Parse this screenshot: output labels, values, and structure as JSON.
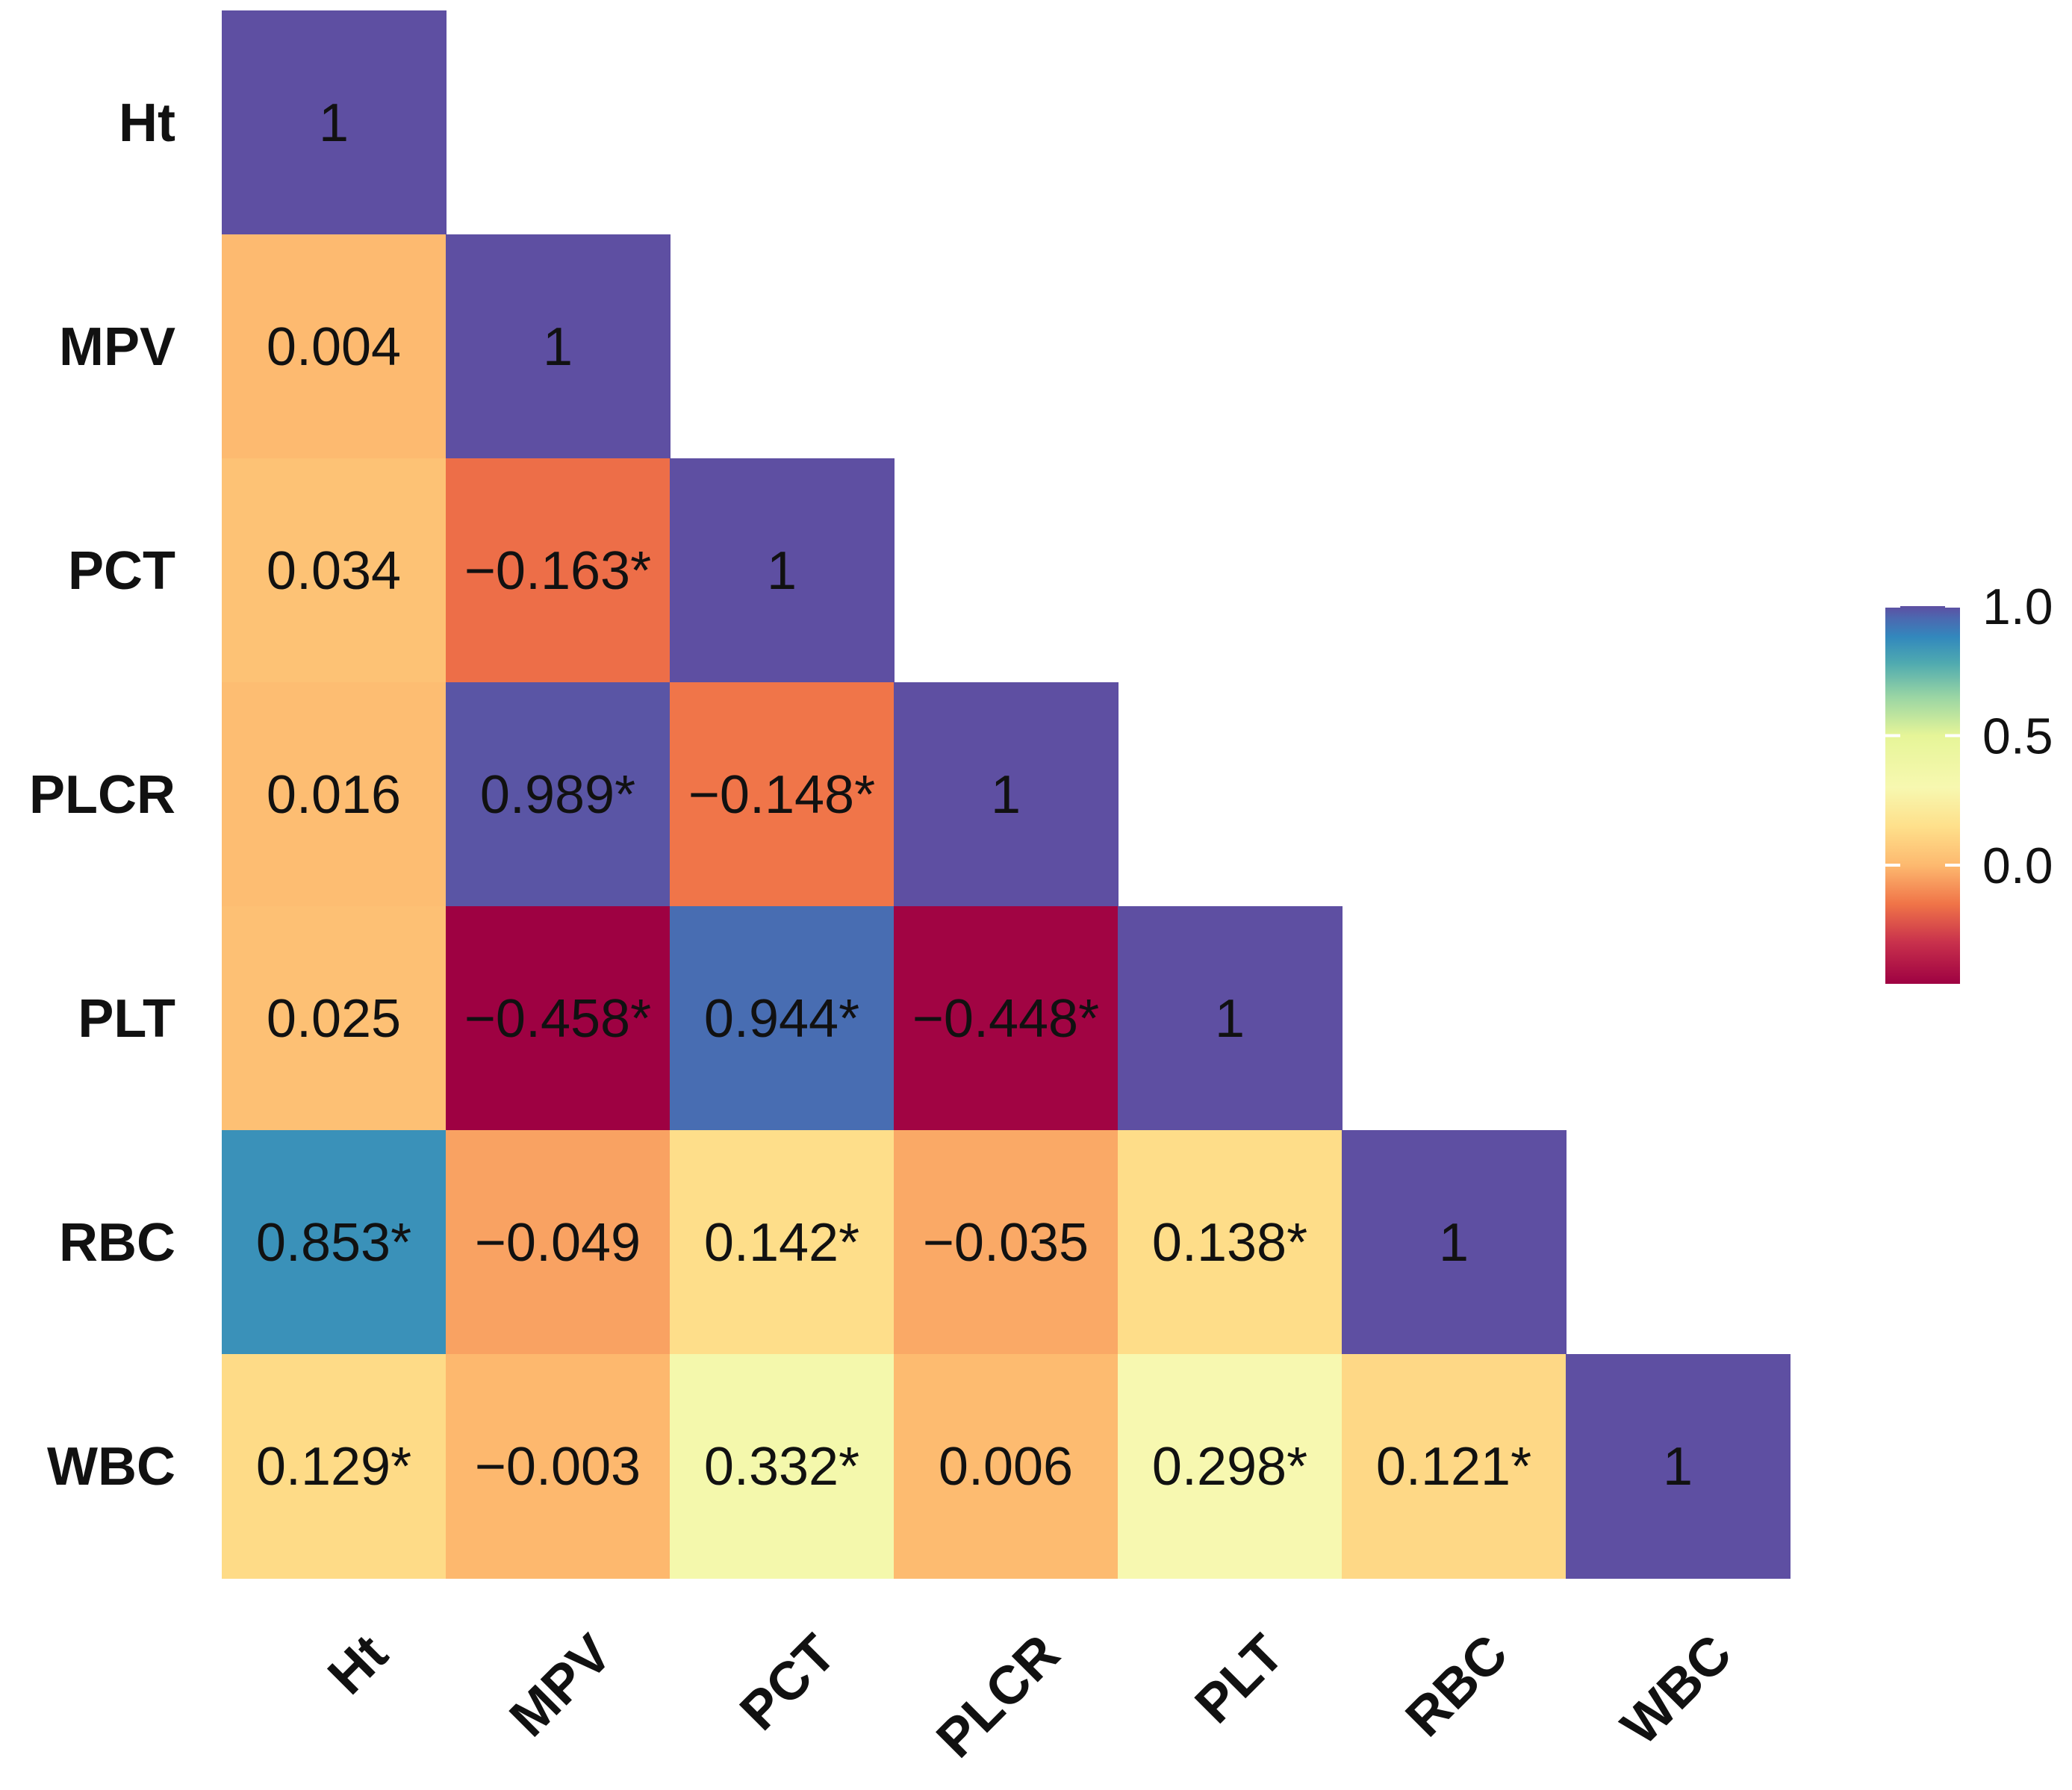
{
  "chart_data": {
    "type": "heatmap",
    "title": "",
    "xlabel": "",
    "ylabel": "",
    "variables": [
      "Ht",
      "MPV",
      "PCT",
      "PLCR",
      "PLT",
      "RBC",
      "WBC"
    ],
    "cells": [
      {
        "row": "Ht",
        "col": "Ht",
        "value": 1,
        "label": "1"
      },
      {
        "row": "MPV",
        "col": "Ht",
        "value": 0.004,
        "label": "0.004"
      },
      {
        "row": "MPV",
        "col": "MPV",
        "value": 1,
        "label": "1"
      },
      {
        "row": "PCT",
        "col": "Ht",
        "value": 0.034,
        "label": "0.034"
      },
      {
        "row": "PCT",
        "col": "MPV",
        "value": -0.163,
        "label": "−0.163*"
      },
      {
        "row": "PCT",
        "col": "PCT",
        "value": 1,
        "label": "1"
      },
      {
        "row": "PLCR",
        "col": "Ht",
        "value": 0.016,
        "label": "0.016"
      },
      {
        "row": "PLCR",
        "col": "MPV",
        "value": 0.989,
        "label": "0.989*"
      },
      {
        "row": "PLCR",
        "col": "PCT",
        "value": -0.148,
        "label": "−0.148*"
      },
      {
        "row": "PLCR",
        "col": "PLCR",
        "value": 1,
        "label": "1"
      },
      {
        "row": "PLT",
        "col": "Ht",
        "value": 0.025,
        "label": "0.025"
      },
      {
        "row": "PLT",
        "col": "MPV",
        "value": -0.458,
        "label": "−0.458*"
      },
      {
        "row": "PLT",
        "col": "PCT",
        "value": 0.944,
        "label": "0.944*"
      },
      {
        "row": "PLT",
        "col": "PLCR",
        "value": -0.448,
        "label": "−0.448*"
      },
      {
        "row": "PLT",
        "col": "PLT",
        "value": 1,
        "label": "1"
      },
      {
        "row": "RBC",
        "col": "Ht",
        "value": 0.853,
        "label": "0.853*"
      },
      {
        "row": "RBC",
        "col": "MPV",
        "value": -0.049,
        "label": "−0.049"
      },
      {
        "row": "RBC",
        "col": "PCT",
        "value": 0.142,
        "label": "0.142*"
      },
      {
        "row": "RBC",
        "col": "PLCR",
        "value": -0.035,
        "label": "−0.035"
      },
      {
        "row": "RBC",
        "col": "PLT",
        "value": 0.138,
        "label": "0.138*"
      },
      {
        "row": "RBC",
        "col": "RBC",
        "value": 1,
        "label": "1"
      },
      {
        "row": "WBC",
        "col": "Ht",
        "value": 0.129,
        "label": "0.129*"
      },
      {
        "row": "WBC",
        "col": "MPV",
        "value": -0.003,
        "label": "−0.003"
      },
      {
        "row": "WBC",
        "col": "PCT",
        "value": 0.332,
        "label": "0.332*"
      },
      {
        "row": "WBC",
        "col": "PLCR",
        "value": 0.006,
        "label": "0.006"
      },
      {
        "row": "WBC",
        "col": "PLT",
        "value": 0.298,
        "label": "0.298*"
      },
      {
        "row": "WBC",
        "col": "RBC",
        "value": 0.121,
        "label": "0.121*"
      },
      {
        "row": "WBC",
        "col": "WBC",
        "value": 1,
        "label": "1"
      }
    ],
    "legend": {
      "position": "right",
      "range": [
        -0.458,
        1.0
      ],
      "ticks": [
        {
          "value": 1.0,
          "label": "1.0"
        },
        {
          "value": 0.5,
          "label": "0.5"
        },
        {
          "value": 0.0,
          "label": "0.0"
        }
      ]
    },
    "color_scale": {
      "name": "Spectral",
      "stops": [
        {
          "value": -0.458,
          "color": "#9E0142"
        },
        {
          "value": -0.3,
          "color": "#C8304C"
        },
        {
          "value": -0.15,
          "color": "#F07448"
        },
        {
          "value": 0.0,
          "color": "#FDB96F"
        },
        {
          "value": 0.15,
          "color": "#FEE08B"
        },
        {
          "value": 0.3,
          "color": "#F7F8B0"
        },
        {
          "value": 0.5,
          "color": "#E6F598"
        },
        {
          "value": 0.65,
          "color": "#99D5A4"
        },
        {
          "value": 0.78,
          "color": "#4FAAB0"
        },
        {
          "value": 0.88,
          "color": "#3288BD"
        },
        {
          "value": 0.95,
          "color": "#4A6AB1"
        },
        {
          "value": 1.0,
          "color": "#5E4FA2"
        }
      ]
    }
  }
}
